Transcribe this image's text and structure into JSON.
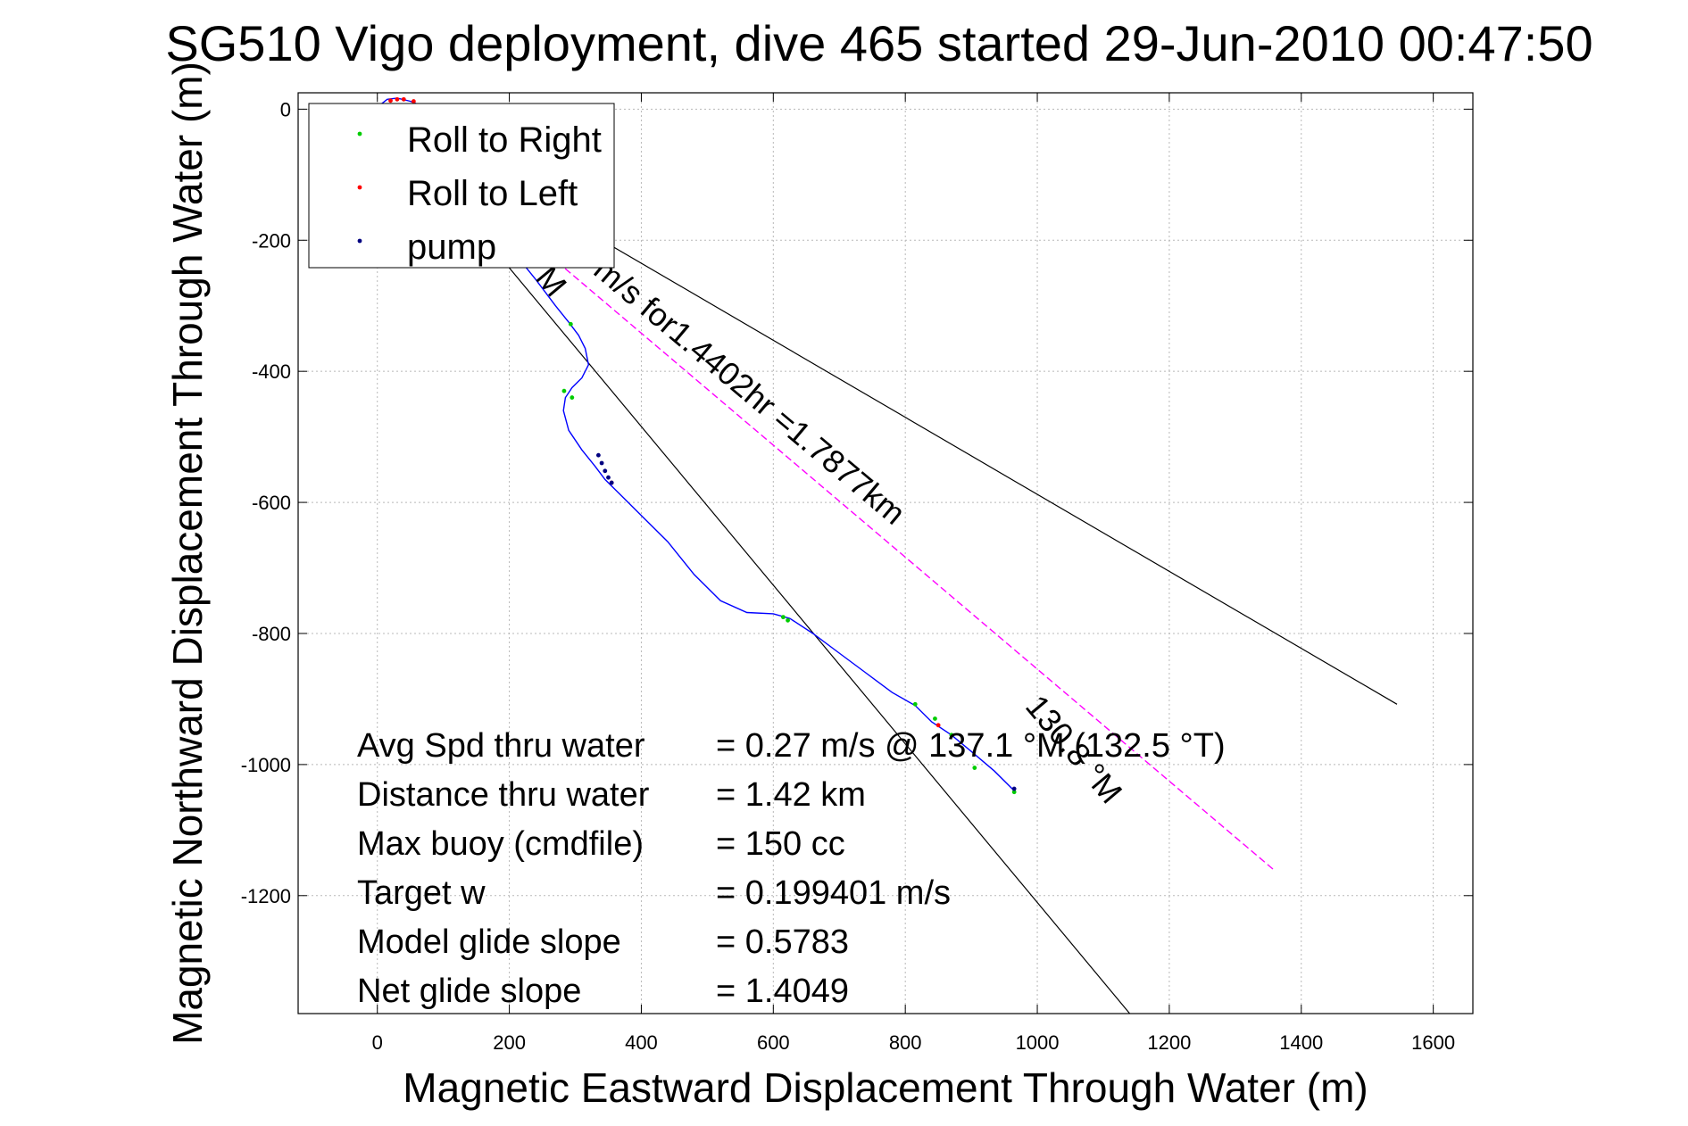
{
  "chart_data": {
    "type": "line",
    "title": "SG510 Vigo deployment, dive 465 started 29-Jun-2010 00:47:50",
    "xlabel": "Magnetic Eastward Displacement Through Water (m)",
    "ylabel": "Magnetic Northward Displacement Through Water (m)",
    "xlim": [
      -120,
      1660
    ],
    "ylim": [
      -1380,
      25
    ],
    "xticks": [
      0,
      200,
      400,
      600,
      800,
      1000,
      1200,
      1400,
      1600
    ],
    "yticks": [
      0,
      -200,
      -400,
      -600,
      -800,
      -1000,
      -1200
    ],
    "grid": true,
    "legend_position": "top-left",
    "legend": [
      {
        "label": "Roll to Right",
        "color": "#00cc00"
      },
      {
        "label": "Roll to Left",
        "color": "#ff0000"
      },
      {
        "label": "pump",
        "color": "#000080"
      }
    ],
    "track": {
      "color": "#0000ff",
      "x": [
        0,
        5,
        15,
        30,
        50,
        80,
        120,
        160,
        200,
        240,
        270,
        290,
        305,
        315,
        320,
        310,
        295,
        285,
        282,
        290,
        310,
        330,
        345,
        355,
        370,
        400,
        440,
        480,
        520,
        560,
        600,
        625,
        660,
        700,
        740,
        780,
        815,
        840,
        870,
        900,
        935,
        965
      ],
      "y": [
        -10,
        7,
        15,
        17,
        12,
        0,
        -60,
        -140,
        -210,
        -260,
        -300,
        -325,
        -345,
        -365,
        -390,
        -410,
        -425,
        -440,
        -460,
        -490,
        -520,
        -545,
        -565,
        -575,
        -590,
        -620,
        -660,
        -710,
        -750,
        -768,
        -770,
        -777,
        -800,
        -830,
        -860,
        -890,
        -910,
        -935,
        -955,
        -980,
        -1010,
        -1040
      ]
    },
    "roll_right_points": {
      "x": [
        0,
        293,
        283,
        295,
        615,
        622,
        815,
        845,
        870,
        965,
        905
      ],
      "y": [
        -5,
        -328,
        -430,
        -440,
        -775,
        -780,
        -908,
        -930,
        -955,
        -1042,
        -1005
      ]
    },
    "roll_left_points": {
      "x": [
        5,
        20,
        30,
        40,
        55,
        355,
        850
      ],
      "y": [
        5,
        13,
        15,
        15,
        12,
        -570,
        -940
      ]
    },
    "pump_points": {
      "x": [
        335,
        340,
        345,
        350,
        355,
        965
      ],
      "y": [
        -528,
        -540,
        -552,
        -562,
        -570,
        -1037
      ]
    },
    "reference_lines": [
      {
        "x": [
          0,
          1545
        ],
        "y": [
          0,
          -908
        ],
        "color": "#000000"
      },
      {
        "x": [
          0,
          1140
        ],
        "y": [
          0,
          -1380
        ],
        "color": "#000000"
      }
    ],
    "current_line": {
      "x": [
        0,
        1360
      ],
      "y": [
        0,
        -1162
      ],
      "color": "#ff00ff"
    },
    "annotations": [
      {
        "text": "m/s for1.4402hr =1.7877km",
        "x": 325,
        "y": -250,
        "angle": 40
      },
      {
        "text": "M",
        "x": 238,
        "y": -258,
        "angle": 50
      },
      {
        "text": "130.8 °M",
        "x": 980,
        "y": -912,
        "angle": 50
      }
    ],
    "stats": [
      {
        "label": "Avg Spd thru water",
        "value": "=  0.27 m/s @ 137.1 °M (132.5 °T)"
      },
      {
        "label": "Distance thru water",
        "value": "=  1.42 km"
      },
      {
        "label": "Max buoy (cmdfile)",
        "value": "= 150 cc"
      },
      {
        "label": "Target w",
        "value": "= 0.199401 m/s"
      },
      {
        "label": "Model glide slope",
        "value": "= 0.5783"
      },
      {
        "label": "Net glide slope",
        "value": "= 1.4049"
      }
    ]
  }
}
